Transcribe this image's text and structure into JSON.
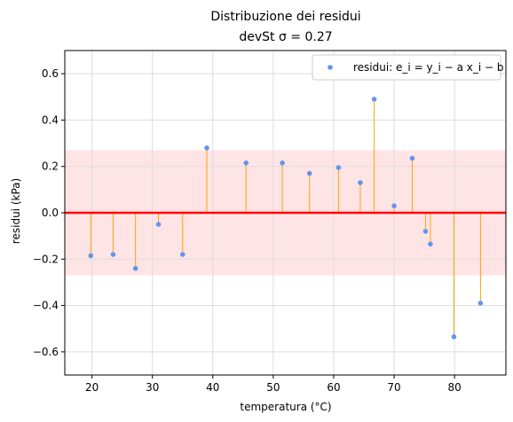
{
  "chart_data": {
    "type": "scatter",
    "title": "Distribuzione dei residui",
    "subtitle": "devSt σ = 0.27",
    "xlabel": "temperatura (°C)",
    "ylabel": "residui (kPa)",
    "xlim": [
      15.5,
      88.5
    ],
    "ylim": [
      -0.7,
      0.7
    ],
    "xticks": [
      20,
      30,
      40,
      50,
      60,
      70,
      80
    ],
    "yticks": [
      -0.6,
      -0.4,
      -0.2,
      0.0,
      0.2,
      0.4,
      0.6
    ],
    "xtick_labels": [
      "20",
      "30",
      "40",
      "50",
      "60",
      "70",
      "80"
    ],
    "ytick_labels": [
      "−0.6",
      "−0.4",
      "−0.2",
      "0.0",
      "0.2",
      "0.4",
      "0.6"
    ],
    "grid": true,
    "sigma": 0.27,
    "zero_line": 0.0,
    "legend": {
      "position": "top-right",
      "label": "residui: e_i = y_i − a x_i − b"
    },
    "series": [
      {
        "name": "residui: e_i = y_i − a x_i − b",
        "x": [
          19.8,
          23.5,
          27.2,
          31.0,
          35.0,
          39.0,
          45.5,
          51.5,
          56.0,
          60.8,
          64.4,
          66.7,
          70.0,
          73.0,
          75.2,
          76.0,
          79.9,
          84.3
        ],
        "y": [
          -0.185,
          -0.18,
          -0.24,
          -0.05,
          -0.18,
          0.28,
          0.215,
          0.215,
          0.17,
          0.195,
          0.13,
          0.49,
          0.03,
          0.235,
          -0.08,
          -0.135,
          -0.535,
          -0.39
        ]
      }
    ],
    "colors": {
      "points": "#6495ed",
      "stems": "#ffa500",
      "zero_line": "#ff0000",
      "band": "#ffe4e6",
      "grid": "#dcdcdc"
    }
  }
}
